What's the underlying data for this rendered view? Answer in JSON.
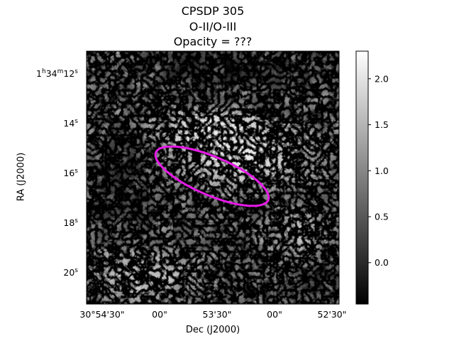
{
  "title": {
    "line1": "CPSDP 305",
    "line2": "O-II/O-III",
    "line3": "Opacity = ???"
  },
  "axes": {
    "xlabel": "Dec (J2000)",
    "ylabel": "RA (J2000)",
    "xticks": [
      "30°54'30\"",
      "00\"",
      "53'30\"",
      "00\"",
      "52'30\""
    ],
    "yticks": [
      {
        "main": "1",
        "sup1": "h",
        "mid": "34",
        "sup2": "m",
        "tail": "12",
        "sup3": "s"
      },
      {
        "main": "14",
        "sup1": "s"
      },
      {
        "main": "16",
        "sup1": "s"
      },
      {
        "main": "18",
        "sup1": "s"
      },
      {
        "main": "20",
        "sup1": "s"
      }
    ]
  },
  "colorbar": {
    "ticks": [
      "2.0",
      "1.5",
      "1.0",
      "0.5",
      "0.0"
    ],
    "values": [
      2.0,
      1.5,
      1.0,
      0.5,
      0.0
    ],
    "range": [
      -0.45,
      2.3
    ],
    "colormap": "grayscale"
  },
  "overlay": {
    "shape": "ellipse",
    "color": "#e619e6"
  }
}
